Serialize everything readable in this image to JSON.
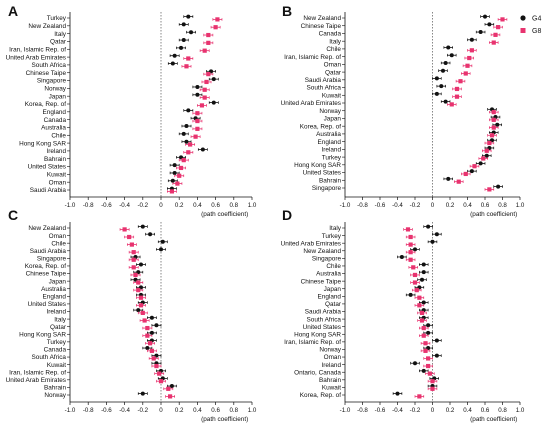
{
  "legend": [
    {
      "name": "G4",
      "color": "#111111",
      "shape": "circle"
    },
    {
      "name": "G8",
      "color": "#e8336f",
      "shape": "square"
    }
  ],
  "chart_data": [
    {
      "type": "forest",
      "panel": "A",
      "xlabel": "(path coefficient)",
      "xlim": [
        -1.0,
        1.0
      ],
      "xticks": [
        "-1.0",
        "-0.8",
        "-0.6",
        "-0.4",
        "-0.2",
        "0",
        "0.2",
        "0.4",
        "0.6",
        "0.8",
        "1.0"
      ],
      "categories": [
        "Turkey",
        "New Zealand",
        "Italy",
        "Qatar",
        "Iran, Islamic Rep. of",
        "United Arab Emirates",
        "South Africa",
        "Chinese Taipe",
        "Singapore",
        "Norway",
        "Japan",
        "Korea, Rep. of",
        "England",
        "Canada",
        "Australia",
        "Chile",
        "Hong Kong SAR",
        "Ireland",
        "Bahrain",
        "United States",
        "Kuwait",
        "Oman",
        "Saudi Arabia"
      ],
      "series": [
        {
          "name": "G4",
          "values": [
            0.3,
            0.25,
            0.33,
            0.25,
            0.22,
            0.15,
            0.13,
            0.55,
            0.58,
            0.4,
            0.4,
            0.58,
            0.3,
            0.38,
            0.28,
            0.25,
            0.28,
            0.46,
            0.22,
            0.15,
            0.15,
            0.13,
            0.12
          ]
        },
        {
          "name": "G8",
          "values": [
            0.62,
            0.6,
            0.52,
            0.52,
            0.48,
            0.3,
            0.28,
            0.52,
            0.5,
            0.48,
            0.48,
            0.45,
            0.4,
            0.4,
            0.4,
            0.38,
            0.32,
            0.3,
            0.25,
            0.22,
            0.2,
            0.18,
            0.12
          ]
        }
      ]
    },
    {
      "type": "forest",
      "panel": "B",
      "xlabel": "(path coefficient)",
      "xlim": [
        -1.0,
        1.0
      ],
      "xticks": [
        "-1.0",
        "-0.8",
        "-0.6",
        "-0.4",
        "-0.2",
        "0",
        "0.2",
        "0.4",
        "0.6",
        "0.8",
        "1.0"
      ],
      "categories": [
        "New Zealand",
        "Chinese Taipe",
        "Canada",
        "Italy",
        "Chile",
        "Iran, Islamic Rep. of",
        "Oman",
        "Qatar",
        "Saudi Arabia",
        "South Africa",
        "Kuwait",
        "United Arab Emirates",
        "Norway",
        "Japan",
        "Korea, Rep. of",
        "Australia",
        "England",
        "Ireland",
        "Turkey",
        "Hong Kong SAR",
        "United States",
        "Bahrain",
        "Singapore"
      ],
      "series": [
        {
          "name": "G4",
          "values": [
            0.6,
            0.65,
            0.55,
            0.45,
            0.18,
            0.22,
            0.15,
            0.12,
            0.05,
            0.1,
            0.05,
            0.15,
            0.68,
            0.72,
            0.74,
            0.7,
            0.68,
            0.65,
            0.62,
            0.55,
            0.45,
            0.18,
            0.75
          ]
        },
        {
          "name": "G8",
          "values": [
            0.8,
            0.75,
            0.72,
            0.7,
            0.45,
            0.42,
            0.4,
            0.38,
            0.32,
            0.28,
            0.28,
            0.22,
            0.7,
            0.7,
            0.7,
            0.68,
            0.65,
            0.62,
            0.58,
            0.48,
            0.38,
            0.3,
            0.65
          ]
        }
      ]
    },
    {
      "type": "forest",
      "panel": "C",
      "xlabel": "(path coefficient)",
      "xlim": [
        -1.0,
        1.0
      ],
      "xticks": [
        "-1.0",
        "-0.8",
        "-0.6",
        "-0.4",
        "-0.2",
        "0",
        "0.2",
        "0.4",
        "0.6",
        "0.8",
        "1.0"
      ],
      "categories": [
        "New Zealand",
        "Oman",
        "Chile",
        "Saudi Arabia",
        "Singapore",
        "Korea, Rep. of",
        "Chinese Taipe",
        "Japan",
        "Australia",
        "England",
        "United States",
        "Ireland",
        "Italy",
        "Qatar",
        "Hong Kong SAR",
        "Turkey",
        "Canada",
        "South Africa",
        "Kuwait",
        "Iran, Islamic Rep. of",
        "United Arab Emirates",
        "Bahrain",
        "Norway"
      ],
      "series": [
        {
          "name": "G4",
          "values": [
            -0.2,
            -0.12,
            0.02,
            0.0,
            -0.28,
            -0.22,
            -0.25,
            -0.28,
            -0.22,
            -0.22,
            -0.2,
            -0.25,
            -0.1,
            -0.05,
            -0.1,
            -0.1,
            -0.15,
            -0.05,
            -0.05,
            0.0,
            0.02,
            0.12,
            -0.2
          ]
        },
        {
          "name": "G8",
          "values": [
            -0.4,
            -0.35,
            -0.32,
            -0.3,
            -0.3,
            -0.3,
            -0.28,
            -0.25,
            -0.25,
            -0.22,
            -0.22,
            -0.2,
            -0.18,
            -0.15,
            -0.15,
            -0.12,
            -0.1,
            -0.08,
            -0.05,
            -0.02,
            0.0,
            0.08,
            0.1
          ]
        }
      ]
    },
    {
      "type": "forest",
      "panel": "D",
      "xlabel": "(path coefficient)",
      "xlim": [
        -1.0,
        1.0
      ],
      "xticks": [
        "-1.0",
        "-0.8",
        "-0.6",
        "-0.4",
        "-0.2",
        "0",
        "0.2",
        "0.4",
        "0.6",
        "0.8",
        "1.0"
      ],
      "categories": [
        "Italy",
        "Turkey",
        "United Arab Emirates",
        "New Zealand",
        "Singapore",
        "Chile",
        "Australia",
        "Chinese Taipe",
        "Japan",
        "England",
        "Qatar",
        "Saudi Arabia",
        "South Africa",
        "United States",
        "Hong Kong SAR",
        "Iran, Islamic Rep. of",
        "Norway",
        "Oman",
        "Ireland",
        "Ontario, Canada",
        "Bahrain",
        "Kuwait",
        "Korea, Rep. of"
      ],
      "series": [
        {
          "name": "G4",
          "values": [
            -0.05,
            0.05,
            0.0,
            -0.2,
            -0.35,
            -0.1,
            -0.1,
            -0.12,
            -0.15,
            -0.25,
            -0.1,
            -0.1,
            -0.1,
            -0.05,
            -0.05,
            0.05,
            -0.05,
            0.05,
            -0.2,
            -0.1,
            0.02,
            0.0,
            -0.4
          ]
        },
        {
          "name": "G8",
          "values": [
            -0.28,
            -0.25,
            -0.25,
            -0.25,
            -0.25,
            -0.22,
            -0.2,
            -0.2,
            -0.18,
            -0.15,
            -0.15,
            -0.12,
            -0.12,
            -0.1,
            -0.1,
            -0.08,
            -0.08,
            -0.05,
            -0.05,
            -0.03,
            0.0,
            0.0,
            -0.15
          ]
        }
      ]
    }
  ]
}
